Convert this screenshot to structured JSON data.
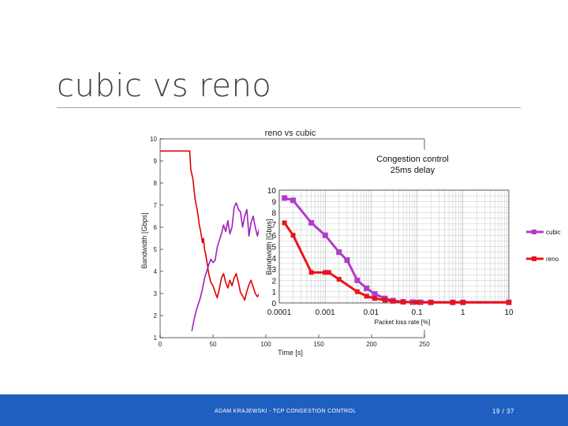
{
  "slide": {
    "title": "cubic vs reno",
    "footer": "ADAM KRAJEWSKI - TCP CONGESTION CONTROL",
    "page": "19 / 37"
  },
  "colors": {
    "footer_bar": "#1f5fbf",
    "cubic": "#b03cc8",
    "reno": "#e8141a",
    "left_reno": "#e00000",
    "left_cubic": "#a020c0"
  },
  "chart_data": [
    {
      "type": "line",
      "title": "reno vs cubic",
      "xlabel": "Time [s]",
      "ylabel": "Bandwidth [Gbps]",
      "xlim": [
        0,
        250
      ],
      "ylim": [
        1,
        10
      ],
      "xticks": [
        0,
        50,
        100,
        150,
        200,
        250
      ],
      "yticks": [
        1,
        2,
        3,
        4,
        5,
        6,
        7,
        8,
        9,
        10
      ],
      "grid": false,
      "series": [
        {
          "color": "#e00000",
          "x": [
            0,
            28,
            29,
            31,
            33,
            35,
            36,
            37,
            38,
            39,
            40,
            41,
            42,
            43,
            44,
            45,
            46,
            48,
            50,
            52,
            54,
            56,
            58,
            60,
            62,
            64,
            66,
            68,
            70,
            72,
            74,
            76,
            78,
            80,
            82,
            84,
            86,
            88,
            90,
            92,
            94,
            96,
            98,
            99
          ],
          "y": [
            9.45,
            9.45,
            8.6,
            8.2,
            7.3,
            6.8,
            6.5,
            6.1,
            5.9,
            5.6,
            5.3,
            5.5,
            5.0,
            4.8,
            4.5,
            4.2,
            3.9,
            3.5,
            3.35,
            3.05,
            2.8,
            3.2,
            3.7,
            3.9,
            3.5,
            3.25,
            3.6,
            3.35,
            3.7,
            3.9,
            3.5,
            3.05,
            2.9,
            2.7,
            3.1,
            3.4,
            3.6,
            3.3,
            3.0,
            2.85,
            3.0,
            3.5,
            3.3,
            3.1
          ]
        },
        {
          "color": "#a020c0",
          "x": [
            30,
            32,
            34,
            36,
            38,
            40,
            42,
            44,
            46,
            48,
            50,
            52,
            54,
            56,
            58,
            60,
            62,
            64,
            66,
            68,
            70,
            72,
            74,
            76,
            78,
            80,
            82,
            84,
            86,
            88,
            90,
            92,
            94,
            96,
            98,
            99
          ],
          "y": [
            1.3,
            1.8,
            2.2,
            2.5,
            2.8,
            3.2,
            3.7,
            4.0,
            4.3,
            4.55,
            4.4,
            4.5,
            5.1,
            5.4,
            5.7,
            6.1,
            5.8,
            6.3,
            5.7,
            6.0,
            6.9,
            7.1,
            6.8,
            6.7,
            6.0,
            6.5,
            6.8,
            5.6,
            6.2,
            6.5,
            6.0,
            5.6,
            6.0,
            6.3,
            6.15,
            6.3
          ]
        }
      ]
    },
    {
      "type": "line",
      "title": "Congestion control",
      "subtitle": "25ms delay",
      "xlabel": "Packet loss rate [%]",
      "ylabel": "Bandwidth [Gbps]",
      "xscale": "log",
      "xlim": [
        0.0001,
        10
      ],
      "ylim": [
        0,
        10
      ],
      "xticks": [
        "0.0001",
        "0.001",
        "0.01",
        "0.1",
        "1",
        "10"
      ],
      "yticks": [
        0,
        1,
        2,
        3,
        4,
        5,
        6,
        7,
        8,
        9,
        10
      ],
      "legend": "right",
      "grid": true,
      "series": [
        {
          "name": "cubic",
          "color": "#b03cc8",
          "x": [
            0.00013,
            0.0002,
            0.0005,
            0.001,
            0.002,
            0.003,
            0.005,
            0.008,
            0.012,
            0.02,
            0.03,
            0.05,
            0.08,
            0.12,
            0.2,
            0.6,
            1.0,
            10
          ],
          "y": [
            9.3,
            9.1,
            7.1,
            6.0,
            4.5,
            3.8,
            2.0,
            1.3,
            0.8,
            0.4,
            0.2,
            0.1,
            0.07,
            0.06,
            0.05,
            0.05,
            0.05,
            0.05
          ]
        },
        {
          "name": "reno",
          "color": "#e8141a",
          "x": [
            0.00013,
            0.0002,
            0.0005,
            0.001,
            0.0012,
            0.002,
            0.005,
            0.008,
            0.012,
            0.02,
            0.03,
            0.05,
            0.1,
            0.2,
            0.6,
            1.0,
            10
          ],
          "y": [
            7.1,
            6.0,
            2.7,
            2.7,
            2.7,
            2.1,
            1.0,
            0.6,
            0.4,
            0.25,
            0.15,
            0.08,
            0.06,
            0.05,
            0.05,
            0.05,
            0.05
          ]
        }
      ]
    }
  ]
}
